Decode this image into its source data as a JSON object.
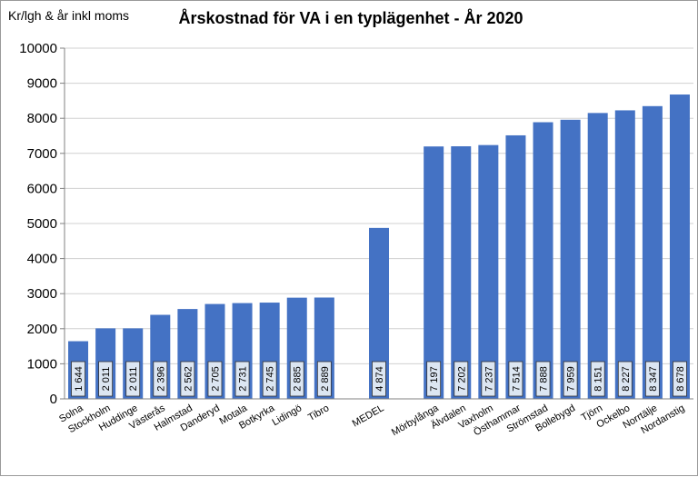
{
  "chart_data": {
    "type": "bar",
    "title": "Årskostnad för VA i en typlägenhet - År 2020",
    "ylabel": "Kr/lgh & år inkl moms",
    "xlabel": "",
    "ylim": [
      0,
      10000
    ],
    "yticks": [
      "0",
      "1000",
      "2000",
      "3000",
      "4000",
      "5000",
      "6000",
      "7000",
      "8000",
      "9000",
      "10000"
    ],
    "grid": true,
    "bar_color": "#4472c4",
    "categories": [
      "Solna",
      "Stockholm",
      "Huddinge",
      "Västerås",
      "Halmstad",
      "Danderyd",
      "Motala",
      "Botkyrka",
      "Lidingö",
      "Tibro",
      "",
      "MEDEL",
      "",
      "Mörbylånga",
      "Älvdalen",
      "Vaxholm",
      "Östhammar",
      "Strömstad",
      "Bollebygd",
      "Tjörn",
      "Ockelbo",
      "Norrtälje",
      "Nordanstig"
    ],
    "values": [
      1644,
      2011,
      2011,
      2396,
      2562,
      2705,
      2731,
      2745,
      2885,
      2889,
      null,
      4874,
      null,
      7197,
      7202,
      7237,
      7514,
      7888,
      7959,
      8151,
      8227,
      8347,
      8678
    ],
    "data_labels": [
      "1 644",
      "2 011",
      "2 011",
      "2 396",
      "2 562",
      "2 705",
      "2 731",
      "2 745",
      "2 885",
      "2 889",
      "",
      "4 874",
      "",
      "7 197",
      "7 202",
      "7 237",
      "7 514",
      "7 888",
      "7 959",
      "8 151",
      "8 227",
      "8 347",
      "8 678"
    ]
  }
}
